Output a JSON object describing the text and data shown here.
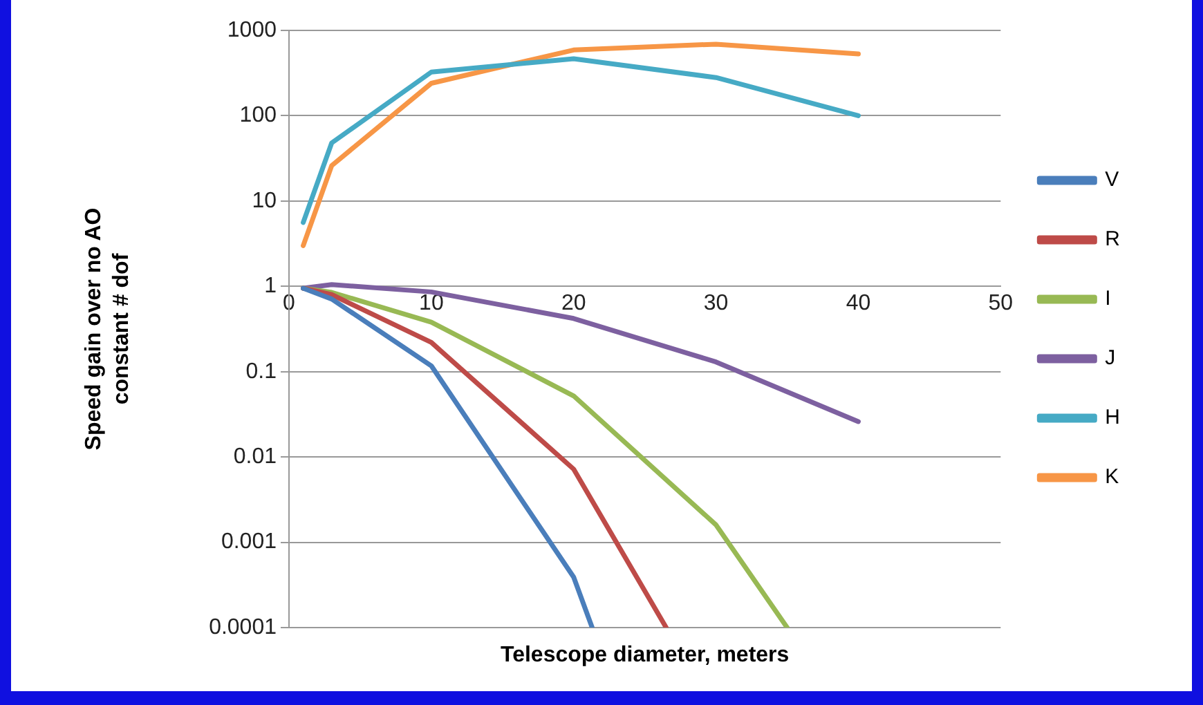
{
  "chart_data": {
    "type": "line",
    "xlabel": "Telescope diameter, meters",
    "ylabel": "Speed gain over no AO\nconstant # dof",
    "log": "y",
    "grid": "y",
    "legend": "right",
    "marker": "none",
    "line_style": "solid",
    "xlim": [
      0,
      50
    ],
    "xticks": [
      0,
      10,
      20,
      30,
      40,
      50
    ],
    "ylim": [
      0.0001,
      1000
    ],
    "yticks": [
      0.0001,
      0.001,
      0.01,
      0.1,
      1,
      10,
      100,
      1000
    ],
    "series": [
      {
        "name": "V",
        "color": "#4a7ebb",
        "x": [
          1,
          3,
          10,
          20,
          21.3
        ],
        "values": [
          0.95,
          0.71,
          0.117,
          0.00039,
          0.0001
        ]
      },
      {
        "name": "R",
        "color": "#be4b48",
        "x": [
          1,
          3,
          10,
          20,
          26.5
        ],
        "values": [
          0.95,
          0.8,
          0.22,
          0.0072,
          0.0001
        ]
      },
      {
        "name": "I",
        "color": "#98b954",
        "x": [
          1,
          3,
          10,
          20,
          30,
          35
        ],
        "values": [
          0.95,
          0.85,
          0.38,
          0.052,
          0.0016,
          0.0001
        ]
      },
      {
        "name": "J",
        "color": "#7d60a0",
        "x": [
          1,
          3,
          10,
          20,
          30,
          40
        ],
        "values": [
          0.95,
          1.05,
          0.86,
          0.42,
          0.13,
          0.026
        ]
      },
      {
        "name": "H",
        "color": "#46aac5",
        "x": [
          1,
          3,
          10,
          20,
          30,
          40
        ],
        "values": [
          5.6,
          48,
          325,
          466,
          280,
          100
        ]
      },
      {
        "name": "K",
        "color": "#f79646",
        "x": [
          1,
          3,
          10,
          20,
          30,
          40
        ],
        "values": [
          3.0,
          26,
          240,
          590,
          690,
          530
        ]
      }
    ]
  }
}
